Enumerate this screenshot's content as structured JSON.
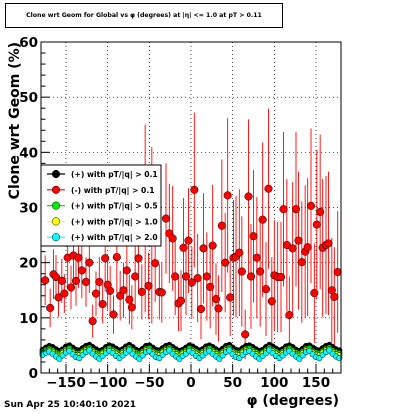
{
  "title": "Clone wrt Geom for Global vs φ (degrees) at |η| <= 1.0 at pT > 0.11",
  "datestamp": "Sun Apr 25 10:40:10 2021",
  "chart_data": {
    "type": "scatter",
    "xlabel": "φ (degrees)",
    "ylabel": "Clone wrt Geom (%)",
    "xlim": [
      -180,
      180
    ],
    "ylim": [
      0,
      60
    ],
    "xticks": [
      -150,
      -100,
      -50,
      0,
      50,
      100,
      150
    ],
    "xtick_labels": [
      "−150",
      "−100",
      "−50",
      "0",
      "50",
      "100",
      "150"
    ],
    "yticks": [
      0,
      10,
      20,
      30,
      40,
      50,
      60
    ],
    "grid": true,
    "legend_position": "left-middle",
    "series": [
      {
        "name": "(+) with pT/|q| > 0.1",
        "color": "#000000",
        "marker": "circle",
        "x": [
          -178,
          -174,
          -170,
          -166,
          -162,
          -158,
          -154,
          -150,
          -146,
          -142,
          -138,
          -134,
          -130,
          -126,
          -122,
          -118,
          -114,
          -110,
          -106,
          -102,
          -98,
          -94,
          -90,
          -86,
          -82,
          -78,
          -74,
          -70,
          -66,
          -62,
          -58,
          -54,
          -50,
          -46,
          -42,
          -38,
          -34,
          -30,
          -26,
          -22,
          -18,
          -14,
          -10,
          -6,
          -2,
          2,
          6,
          10,
          14,
          18,
          22,
          26,
          30,
          34,
          38,
          42,
          46,
          50,
          54,
          58,
          62,
          66,
          70,
          74,
          78,
          82,
          86,
          90,
          94,
          98,
          102,
          106,
          110,
          114,
          118,
          122,
          126,
          130,
          134,
          138,
          142,
          146,
          150,
          154,
          158,
          162,
          166,
          170,
          174,
          178
        ],
        "values": [
          4.2,
          4.6,
          4.9,
          4.7,
          4.3,
          4.0,
          4.3,
          4.8,
          5.0,
          4.6,
          4.2,
          4.1,
          4.5,
          4.9,
          5.1,
          4.7,
          4.3,
          4.0,
          4.2,
          4.7,
          5.0,
          4.8,
          4.4,
          4.1,
          4.3,
          4.8,
          5.1,
          4.7,
          4.2,
          4.0,
          4.4,
          4.9,
          5.0,
          4.6,
          4.2,
          4.1,
          4.5,
          4.9,
          5.1,
          4.7,
          4.3,
          4.0,
          4.2,
          4.6,
          5.0,
          4.8,
          4.4,
          4.1,
          4.3,
          4.8,
          5.0,
          4.7,
          4.3,
          4.0,
          4.4,
          4.9,
          5.1,
          4.6,
          4.2,
          4.1,
          4.5,
          4.9,
          5.0,
          4.7,
          4.3,
          4.0,
          4.2,
          4.7,
          5.1,
          4.8,
          4.4,
          4.1,
          4.3,
          4.8,
          5.0,
          4.7,
          4.2,
          4.0,
          4.4,
          4.9,
          5.0,
          4.6,
          4.2,
          4.1,
          4.5,
          4.9,
          5.1,
          4.7,
          4.3,
          4.1
        ]
      },
      {
        "name": "(-) with pT/|q| > 0.1",
        "color": "#ff0000",
        "marker": "circle",
        "x": [
          -175,
          -169,
          -165,
          -162,
          -159,
          -155,
          -152,
          -148,
          -144,
          -141,
          -138,
          -135,
          -131,
          -126,
          -122,
          -118,
          -114,
          -110,
          -106,
          -103,
          -100,
          -97,
          -93,
          -89,
          -85,
          -81,
          -77,
          -74,
          -71,
          -67,
          -63,
          -59,
          -55,
          -51,
          -47,
          -43,
          -38,
          -35,
          -30,
          -26,
          -22,
          -19,
          -15,
          -12,
          -9,
          -6,
          -3,
          1,
          4,
          8,
          12,
          15,
          19,
          23,
          26,
          30,
          33,
          37,
          41,
          44,
          47,
          51,
          54,
          58,
          61,
          65,
          69,
          72,
          75,
          79,
          83,
          86,
          90,
          93,
          97,
          100,
          104,
          108,
          111,
          115,
          118,
          122,
          126,
          129,
          133,
          137,
          140,
          144,
          148,
          151,
          155,
          158,
          162,
          165,
          169,
          172,
          176
        ],
        "values": [
          16.8,
          11.8,
          17.9,
          17.4,
          13.7,
          16.7,
          14.4,
          20.9,
          15.5,
          21.3,
          16.7,
          20.9,
          18.6,
          16.5,
          20.0,
          9.4,
          14.4,
          16.5,
          12.5,
          20.8,
          16.0,
          14.9,
          10.6,
          21.0,
          14.0,
          15.0,
          18.6,
          13.3,
          11.9,
          17.5,
          20.8,
          14.7,
          28.0,
          15.8,
          25.0,
          19.9,
          14.7,
          14.6,
          28.0,
          25.3,
          24.4,
          17.5,
          12.6,
          13.1,
          22.7,
          17.5,
          24.0,
          16.4,
          33.2,
          17.2,
          11.6,
          22.6,
          17.5,
          15.6,
          23.1,
          13.4,
          11.7,
          26.7,
          20.0,
          32.2,
          13.7,
          20.9,
          21.1,
          21.8,
          18.4,
          7.0,
          32.0,
          17.5,
          24.8,
          20.9,
          18.4,
          27.8,
          15.2,
          33.4,
          13.0,
          17.7,
          17.4,
          17.4,
          29.7,
          23.2,
          10.5,
          22.6,
          29.7,
          24.0,
          20.1,
          22.0,
          22.8,
          30.3,
          14.5,
          26.9,
          29.2,
          22.7,
          23.2,
          23.5,
          15.0,
          13.8,
          18.3
        ],
        "errors": [
          4.5,
          3.5,
          4.5,
          4.0,
          3.5,
          4.0,
          3.5,
          5.5,
          4.0,
          6.0,
          4.5,
          5.5,
          5.0,
          4.5,
          5.5,
          3.0,
          4.0,
          4.5,
          3.5,
          6.0,
          4.5,
          4.5,
          3.5,
          6.5,
          4.5,
          5.0,
          6.0,
          4.5,
          4.0,
          5.5,
          6.5,
          5.0,
          17.0,
          6.0,
          16.0,
          7.0,
          5.0,
          5.5,
          10.0,
          9.0,
          9.5,
          7.0,
          5.0,
          5.5,
          9.0,
          7.0,
          9.5,
          6.5,
          14.0,
          8.0,
          5.5,
          10.0,
          8.0,
          7.5,
          11.0,
          6.5,
          6.0,
          12.0,
          9.0,
          14.0,
          7.0,
          10.5,
          11.0,
          11.5,
          10.0,
          4.5,
          14.0,
          9.5,
          12.0,
          11.0,
          10.0,
          14.0,
          8.5,
          14.5,
          8.0,
          10.0,
          10.0,
          10.0,
          14.0,
          12.0,
          7.0,
          12.0,
          14.0,
          12.5,
          11.0,
          12.0,
          12.5,
          14.0,
          9.0,
          13.5,
          14.0,
          12.5,
          12.5,
          13.0,
          9.5,
          9.0,
          11.0
        ]
      },
      {
        "name": "(+) with pT/|q| > 0.5",
        "color": "#00ee00",
        "marker": "circle",
        "x": [
          -178,
          -174,
          -170,
          -166,
          -162,
          -158,
          -154,
          -150,
          -146,
          -142,
          -138,
          -134,
          -130,
          -126,
          -122,
          -118,
          -114,
          -110,
          -106,
          -102,
          -98,
          -94,
          -90,
          -86,
          -82,
          -78,
          -74,
          -70,
          -66,
          -62,
          -58,
          -54,
          -50,
          -46,
          -42,
          -38,
          -34,
          -30,
          -26,
          -22,
          -18,
          -14,
          -10,
          -6,
          -2,
          2,
          6,
          10,
          14,
          18,
          22,
          26,
          30,
          34,
          38,
          42,
          46,
          50,
          54,
          58,
          62,
          66,
          70,
          74,
          78,
          82,
          86,
          90,
          94,
          98,
          102,
          106,
          110,
          114,
          118,
          122,
          126,
          130,
          134,
          138,
          142,
          146,
          150,
          154,
          158,
          162,
          166,
          170,
          174,
          178
        ],
        "values": [
          3.8,
          4.2,
          4.4,
          4.1,
          3.7,
          3.5,
          3.9,
          4.3,
          4.5,
          4.0,
          3.6,
          3.6,
          4.0,
          4.4,
          4.6,
          4.1,
          3.7,
          3.5,
          3.8,
          4.2,
          4.5,
          4.2,
          3.9,
          3.6,
          3.9,
          4.3,
          4.6,
          4.1,
          3.7,
          3.5,
          3.9,
          4.4,
          4.5,
          4.0,
          3.7,
          3.6,
          4.0,
          4.4,
          4.6,
          4.1,
          3.8,
          3.5,
          3.8,
          4.1,
          4.5,
          4.2,
          3.9,
          3.6,
          3.9,
          4.3,
          4.5,
          4.1,
          3.8,
          3.5,
          3.9,
          4.4,
          4.6,
          4.0,
          3.7,
          3.6,
          4.0,
          4.4,
          4.5,
          4.1,
          3.8,
          3.5,
          3.8,
          4.2,
          4.6,
          4.2,
          3.9,
          3.6,
          3.9,
          4.3,
          4.5,
          4.1,
          3.7,
          3.5,
          3.9,
          4.4,
          4.5,
          4.0,
          3.7,
          3.6,
          4.0,
          4.4,
          4.6,
          4.1,
          3.8,
          3.6
        ]
      },
      {
        "name": "(+) with pT/|q| > 1.0",
        "color": "#ffff00",
        "marker": "circle",
        "x": [
          -178,
          -174,
          -170,
          -166,
          -162,
          -158,
          -154,
          -150,
          -146,
          -142,
          -138,
          -134,
          -130,
          -126,
          -122,
          -118,
          -114,
          -110,
          -106,
          -102,
          -98,
          -94,
          -90,
          -86,
          -82,
          -78,
          -74,
          -70,
          -66,
          -62,
          -58,
          -54,
          -50,
          -46,
          -42,
          -38,
          -34,
          -30,
          -26,
          -22,
          -18,
          -14,
          -10,
          -6,
          -2,
          2,
          6,
          10,
          14,
          18,
          22,
          26,
          30,
          34,
          38,
          42,
          46,
          50,
          54,
          58,
          62,
          66,
          70,
          74,
          78,
          82,
          86,
          90,
          94,
          98,
          102,
          106,
          110,
          114,
          118,
          122,
          126,
          130,
          134,
          138,
          142,
          146,
          150,
          154,
          158,
          162,
          166,
          170,
          174,
          178
        ],
        "values": [
          3.5,
          3.9,
          4.1,
          3.8,
          3.3,
          3.1,
          3.6,
          4.0,
          4.2,
          3.7,
          3.2,
          3.2,
          3.7,
          4.1,
          4.3,
          3.8,
          3.3,
          3.1,
          3.5,
          3.9,
          4.2,
          3.9,
          3.5,
          3.2,
          3.6,
          4.0,
          4.3,
          3.8,
          3.3,
          3.1,
          3.6,
          4.1,
          4.2,
          3.7,
          3.3,
          3.2,
          3.7,
          4.1,
          4.3,
          3.8,
          3.4,
          3.1,
          3.5,
          3.8,
          4.2,
          3.9,
          3.5,
          3.2,
          3.6,
          4.0,
          4.2,
          3.8,
          3.4,
          3.1,
          3.6,
          4.1,
          4.3,
          3.7,
          3.3,
          3.2,
          3.7,
          4.1,
          4.2,
          3.8,
          3.4,
          3.1,
          3.5,
          3.9,
          4.3,
          3.9,
          3.5,
          3.2,
          3.6,
          4.0,
          4.2,
          3.8,
          3.3,
          3.1,
          3.6,
          4.1,
          4.2,
          3.7,
          3.3,
          3.2,
          3.7,
          4.1,
          4.3,
          3.8,
          3.4,
          3.2
        ]
      },
      {
        "name": "(+) with pT/|q| > 2.0",
        "color": "#00ffff",
        "marker": "circle",
        "x": [
          -178,
          -174,
          -170,
          -166,
          -162,
          -158,
          -154,
          -150,
          -146,
          -142,
          -138,
          -134,
          -130,
          -126,
          -122,
          -118,
          -114,
          -110,
          -106,
          -102,
          -98,
          -94,
          -90,
          -86,
          -82,
          -78,
          -74,
          -70,
          -66,
          -62,
          -58,
          -54,
          -50,
          -46,
          -42,
          -38,
          -34,
          -30,
          -26,
          -22,
          -18,
          -14,
          -10,
          -6,
          -2,
          2,
          6,
          10,
          14,
          18,
          22,
          26,
          30,
          34,
          38,
          42,
          46,
          50,
          54,
          58,
          62,
          66,
          70,
          74,
          78,
          82,
          86,
          90,
          94,
          98,
          102,
          106,
          110,
          114,
          118,
          122,
          126,
          130,
          134,
          138,
          142,
          146,
          150,
          154,
          158,
          162,
          166,
          170,
          174,
          178
        ],
        "values": [
          3.3,
          3.7,
          3.9,
          3.5,
          3.0,
          2.6,
          3.2,
          3.7,
          4.0,
          3.4,
          2.9,
          2.7,
          3.3,
          3.8,
          4.1,
          3.5,
          3.0,
          2.6,
          3.1,
          3.6,
          4.0,
          3.6,
          3.1,
          2.7,
          3.2,
          3.7,
          4.1,
          3.5,
          3.0,
          2.6,
          3.2,
          3.8,
          4.0,
          3.4,
          2.9,
          2.7,
          3.3,
          3.8,
          4.1,
          3.5,
          3.0,
          2.6,
          3.1,
          3.5,
          4.0,
          3.6,
          3.1,
          2.7,
          3.2,
          3.7,
          4.0,
          3.5,
          3.0,
          2.6,
          3.2,
          3.8,
          4.1,
          3.4,
          2.9,
          2.7,
          3.3,
          3.8,
          4.0,
          3.5,
          3.0,
          2.6,
          3.1,
          3.6,
          4.1,
          3.6,
          3.1,
          2.7,
          3.2,
          3.7,
          4.0,
          3.5,
          3.0,
          2.6,
          3.2,
          3.8,
          4.0,
          3.4,
          2.9,
          2.7,
          3.3,
          3.8,
          4.1,
          3.5,
          3.0,
          2.7
        ]
      }
    ]
  }
}
